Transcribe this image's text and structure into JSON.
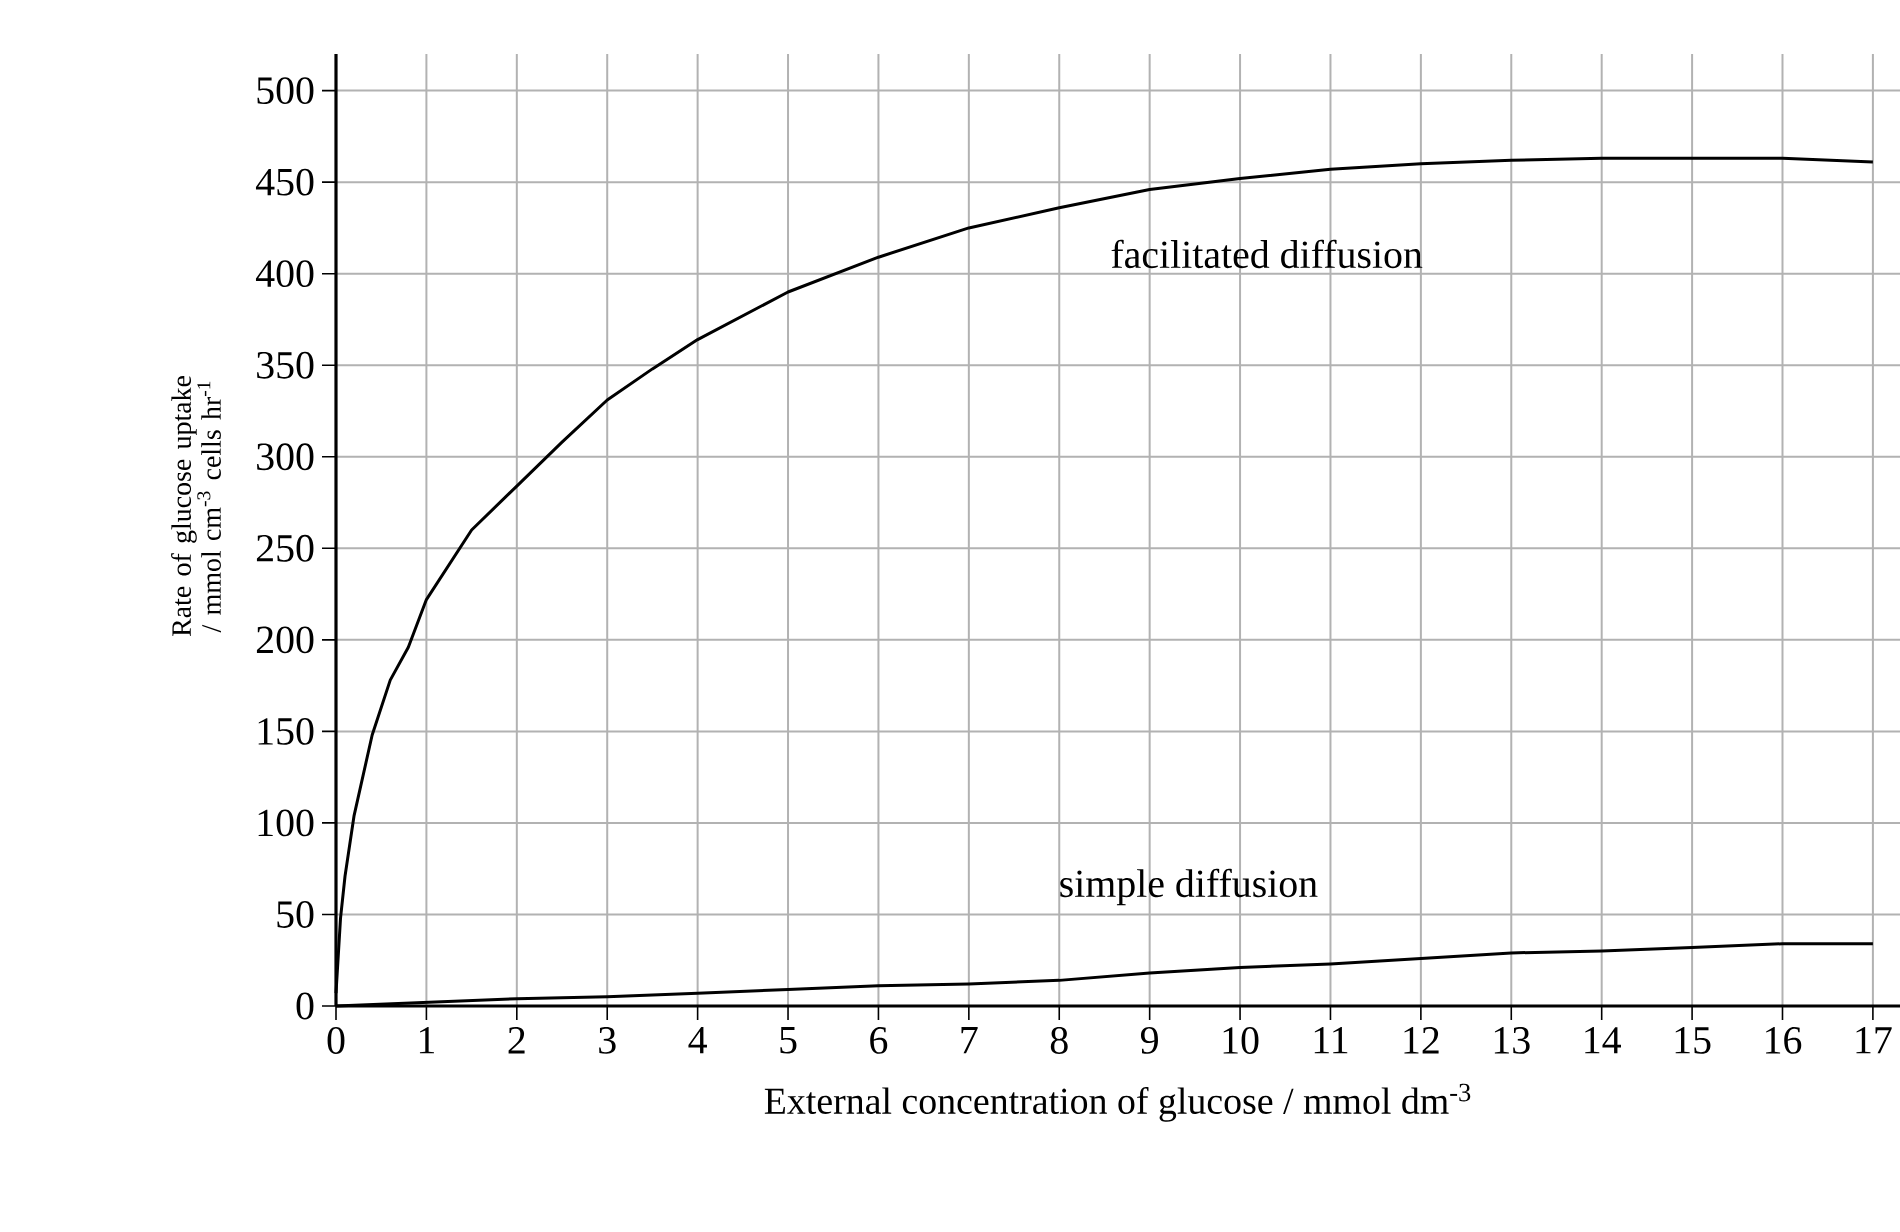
{
  "chart_data": {
    "type": "line",
    "xlabel": "External concentration of glucose / mmol dm$^{-3}$",
    "ylabel": "Rate of glucose uptake / mmol cm$^{-3}$ cells hr$^{-1}$",
    "xlim": [
      0,
      17.3
    ],
    "ylim": [
      0,
      520
    ],
    "xticks": [
      0,
      1,
      2,
      3,
      4,
      5,
      6,
      7,
      8,
      9,
      10,
      11,
      12,
      13,
      14,
      15,
      16,
      17
    ],
    "yticks": [
      0,
      50,
      100,
      150,
      200,
      250,
      300,
      350,
      400,
      450,
      500
    ],
    "grid": true,
    "marker": "none",
    "line_style": "solid",
    "series": [
      {
        "color": "#000000",
        "x": [
          0,
          0.05,
          0.1,
          0.2,
          0.4,
          0.6,
          0.8,
          1,
          1.5,
          2,
          2.5,
          3,
          3.5,
          4,
          5,
          6,
          7,
          8,
          9,
          10,
          11,
          12,
          13,
          14,
          15,
          16,
          17
        ],
        "values": [
          7,
          48,
          71,
          104,
          148,
          178,
          196,
          222,
          260,
          284,
          308,
          331,
          348,
          364,
          390,
          409,
          425,
          436,
          446,
          452,
          457,
          460,
          462,
          463,
          463,
          463,
          461
        ]
      },
      {
        "color": "#000000",
        "x": [
          0,
          1,
          2,
          3,
          4,
          5,
          6,
          7,
          8,
          9,
          10,
          11,
          12,
          13,
          14,
          15,
          16,
          17
        ],
        "values": [
          0,
          2,
          4,
          5,
          7,
          9,
          11,
          12,
          14,
          18,
          21,
          23,
          26,
          29,
          30,
          32,
          34,
          34
        ]
      }
    ],
    "annotations": [
      "facilitated diffusion",
      "simple diffusion"
    ]
  }
}
